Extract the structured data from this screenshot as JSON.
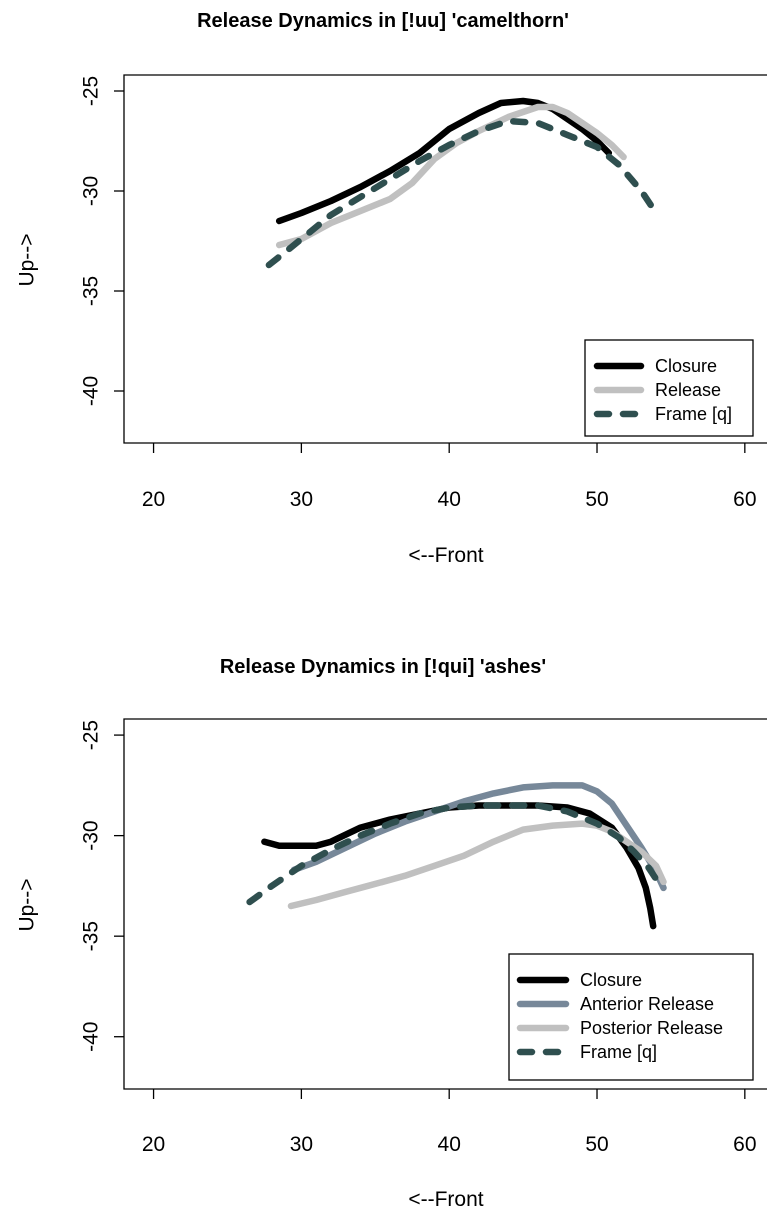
{
  "chart_data": [
    {
      "type": "line",
      "title": "Release Dynamics in [!uu] 'camelthorn'",
      "xlabel": "<--Front",
      "ylabel": "Up-->",
      "xlim": [
        18,
        61.5
      ],
      "ylim": [
        -42.6,
        -24.2
      ],
      "xticks": [
        "20",
        "30",
        "40",
        "50",
        "60"
      ],
      "yticks": [
        "-25",
        "-30",
        "-35",
        "-40"
      ],
      "legend_position": "bottom-right",
      "series": [
        {
          "name": "Closure",
          "color": "#000000",
          "dash": "solid",
          "x": [
            28.5,
            30,
            32,
            34,
            36,
            38,
            40,
            42,
            43.5,
            45,
            46,
            47,
            48,
            49,
            50,
            50.8
          ],
          "y": [
            -31.5,
            -31.1,
            -30.5,
            -29.8,
            -29.0,
            -28.1,
            -26.9,
            -26.1,
            -25.6,
            -25.5,
            -25.6,
            -25.9,
            -26.4,
            -26.9,
            -27.5,
            -28.1
          ]
        },
        {
          "name": "Release",
          "color": "#c0c0c0",
          "dash": "solid",
          "x": [
            28.5,
            30,
            32,
            34,
            36,
            37.5,
            39,
            40.5,
            42,
            44,
            46,
            47,
            48,
            49,
            50,
            51,
            51.8
          ],
          "y": [
            -32.7,
            -32.4,
            -31.6,
            -31.0,
            -30.4,
            -29.6,
            -28.4,
            -27.6,
            -27.0,
            -26.3,
            -25.8,
            -25.8,
            -26.1,
            -26.6,
            -27.1,
            -27.7,
            -28.3
          ]
        },
        {
          "name": "Frame [q]",
          "color": "#2f4f4f",
          "dash": "dashed",
          "x": [
            27.8,
            29,
            30.5,
            32,
            34,
            36,
            38,
            40,
            42,
            44,
            46,
            48,
            50,
            51.5,
            53,
            54
          ],
          "y": [
            -33.7,
            -33.0,
            -32.1,
            -31.2,
            -30.3,
            -29.4,
            -28.5,
            -27.7,
            -27.0,
            -26.5,
            -26.6,
            -27.2,
            -27.8,
            -28.7,
            -30.0,
            -31.1
          ]
        }
      ]
    },
    {
      "type": "line",
      "title": "Release Dynamics in [!qui] 'ashes'",
      "xlabel": "<--Front",
      "ylabel": "Up-->",
      "xlim": [
        18,
        61.5
      ],
      "ylim": [
        -42.6,
        -24.2
      ],
      "xticks": [
        "20",
        "30",
        "40",
        "50",
        "60"
      ],
      "yticks": [
        "-25",
        "-30",
        "-35",
        "-40"
      ],
      "legend_position": "bottom-right",
      "series": [
        {
          "name": "Closure",
          "color": "#000000",
          "dash": "solid",
          "x": [
            27.5,
            28.5,
            30,
            31,
            32,
            34,
            36,
            38,
            40,
            42,
            44,
            46,
            48,
            49.5,
            51,
            52,
            52.8,
            53.3,
            53.6,
            53.8
          ],
          "y": [
            -30.3,
            -30.5,
            -30.5,
            -30.5,
            -30.3,
            -29.6,
            -29.2,
            -28.9,
            -28.6,
            -28.5,
            -28.5,
            -28.5,
            -28.6,
            -28.9,
            -29.6,
            -30.6,
            -31.6,
            -32.6,
            -33.6,
            -34.5
          ]
        },
        {
          "name": "Anterior Release",
          "color": "#778899",
          "dash": "solid",
          "x": [
            29.5,
            31,
            33,
            35,
            37,
            39,
            41,
            43,
            45,
            47,
            49,
            50,
            51,
            52,
            53,
            54,
            54.5
          ],
          "y": [
            -31.7,
            -31.3,
            -30.6,
            -29.9,
            -29.3,
            -28.8,
            -28.3,
            -27.9,
            -27.6,
            -27.5,
            -27.5,
            -27.8,
            -28.4,
            -29.5,
            -30.6,
            -31.8,
            -32.6
          ]
        },
        {
          "name": "Posterior Release",
          "color": "#c0c0c0",
          "dash": "solid",
          "x": [
            29.3,
            31,
            33,
            35,
            37,
            39,
            41,
            43,
            45,
            47,
            49,
            50,
            51,
            52,
            53,
            54,
            54.5
          ],
          "y": [
            -33.5,
            -33.2,
            -32.8,
            -32.4,
            -32.0,
            -31.5,
            -31.0,
            -30.3,
            -29.7,
            -29.5,
            -29.4,
            -29.5,
            -29.8,
            -30.3,
            -30.8,
            -31.5,
            -32.3
          ]
        },
        {
          "name": "Frame [q]",
          "color": "#2f4f4f",
          "dash": "dashed",
          "x": [
            26.5,
            28,
            30,
            32,
            34,
            36,
            38,
            40,
            42,
            44,
            46,
            48,
            50,
            51.5,
            52.5,
            53.5,
            54.3
          ],
          "y": [
            -33.3,
            -32.5,
            -31.5,
            -30.7,
            -30.0,
            -29.4,
            -28.9,
            -28.6,
            -28.5,
            -28.5,
            -28.5,
            -28.8,
            -29.4,
            -30.1,
            -30.8,
            -31.6,
            -32.5
          ]
        }
      ]
    }
  ]
}
